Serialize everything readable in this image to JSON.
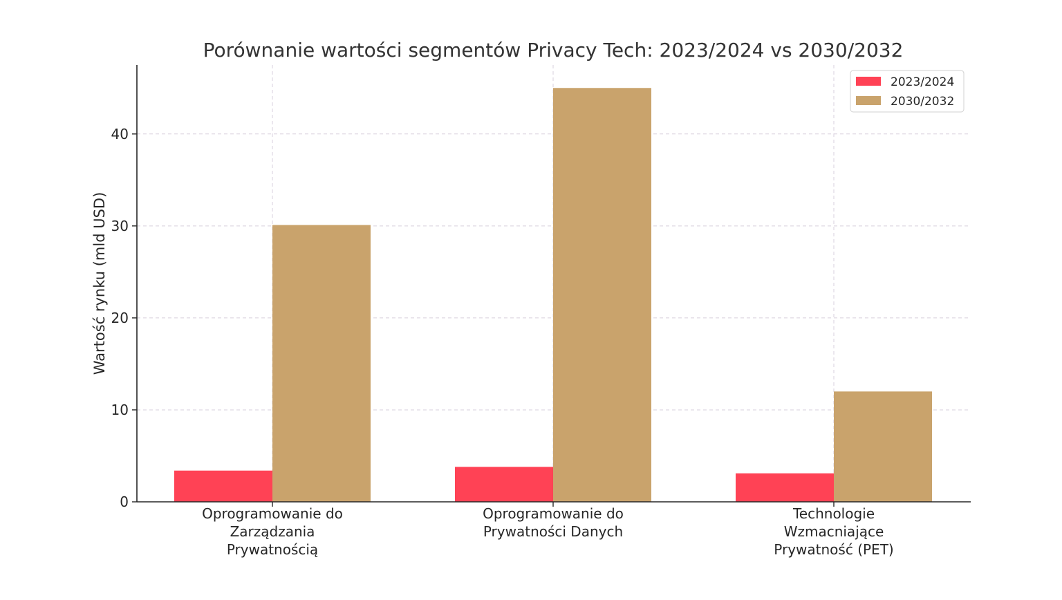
{
  "chart_data": {
    "type": "bar",
    "title": "Porównanie wartości segmentów Privacy Tech: 2023/2024 vs 2030/2032",
    "xlabel": "",
    "ylabel": "Wartość rynku (mld USD)",
    "ylim": [
      0,
      47.5
    ],
    "yticks": [
      0,
      10,
      20,
      30,
      40
    ],
    "grid": true,
    "legend_position": "top-right",
    "categories": [
      [
        "Oprogramowanie do",
        "Zarządzania",
        "Prywatnością"
      ],
      [
        "Oprogramowanie do",
        "Prywatności Danych"
      ],
      [
        "Technologie",
        "Wzmacniające",
        "Prywatność (PET)"
      ]
    ],
    "series": [
      {
        "name": "2023/2024",
        "color": "#ff4255",
        "values": [
          3.4,
          3.8,
          3.1
        ]
      },
      {
        "name": "2030/2032",
        "color": "#c9a36c",
        "values": [
          30.1,
          45.0,
          12.0
        ]
      }
    ]
  }
}
